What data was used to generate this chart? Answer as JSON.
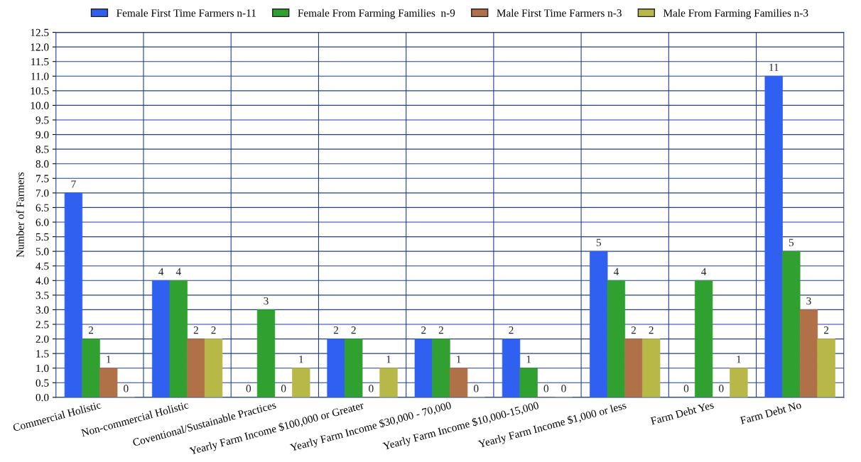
{
  "chart_data": {
    "type": "bar",
    "ylabel": "Number of Farmers",
    "categories": [
      "Commercial Holistic",
      "Non-commercial Holistic",
      "Coventional/Sustainable Practices",
      "Yearly Farm Income $100,000 or Greater",
      "Yearly Farm Income $30,000 - 70,000",
      "Yearly Farm Income $10,000-15,000",
      "Yearly Farm Income $1,000 or less",
      "Farm Debt Yes",
      "Farm Debt No"
    ],
    "series": [
      {
        "name": "Female First Time Farmers n-11",
        "color": "#3060f0",
        "values": [
          7,
          4,
          0,
          2,
          2,
          2,
          5,
          0,
          11
        ]
      },
      {
        "name": "Female From Farming Families  n-9",
        "color": "#30a030",
        "values": [
          2,
          4,
          3,
          2,
          2,
          1,
          4,
          4,
          5
        ]
      },
      {
        "name": "Male First Time Farmers n-3",
        "color": "#b07048",
        "values": [
          1,
          2,
          0,
          0,
          1,
          0,
          2,
          0,
          3
        ]
      },
      {
        "name": "Male From Farming Families n-3",
        "color": "#b8b848",
        "values": [
          0,
          2,
          1,
          1,
          0,
          0,
          2,
          1,
          2
        ]
      }
    ],
    "ylim": [
      0,
      12.5
    ],
    "yticks": [
      {
        "value": 0,
        "label": "0.0"
      },
      {
        "value": 0.5,
        "label": "0.5"
      },
      {
        "value": 1,
        "label": "1.0"
      },
      {
        "value": 1.5,
        "label": "1.5"
      },
      {
        "value": 2,
        "label": "2.0"
      },
      {
        "value": 2.5,
        "label": "2.5"
      },
      {
        "value": 3,
        "label": "3.0"
      },
      {
        "value": 3.5,
        "label": "3.5"
      },
      {
        "value": 4,
        "label": "4.0"
      },
      {
        "value": 4.5,
        "label": "4.5"
      },
      {
        "value": 5,
        "label": "5.0"
      },
      {
        "value": 5.5,
        "label": "5.5"
      },
      {
        "value": 6,
        "label": "6.0"
      },
      {
        "value": 6.5,
        "label": "6.5"
      },
      {
        "value": 7,
        "label": "7.0"
      },
      {
        "value": 7.5,
        "label": "7.5"
      },
      {
        "value": 8,
        "label": "8.0"
      },
      {
        "value": 8.5,
        "label": "8.5"
      },
      {
        "value": 9,
        "label": "9.0"
      },
      {
        "value": 9.5,
        "label": "9.5"
      },
      {
        "value": 10,
        "label": "10.0"
      },
      {
        "value": 10.5,
        "label": "10.5"
      },
      {
        "value": 11,
        "label": "11.0"
      },
      {
        "value": 11.5,
        "label": "11.5"
      },
      {
        "value": 12,
        "label": "12.0"
      },
      {
        "value": 12.5,
        "label": "12.5"
      }
    ],
    "grid": true,
    "legend": "top",
    "data_labels": true
  }
}
